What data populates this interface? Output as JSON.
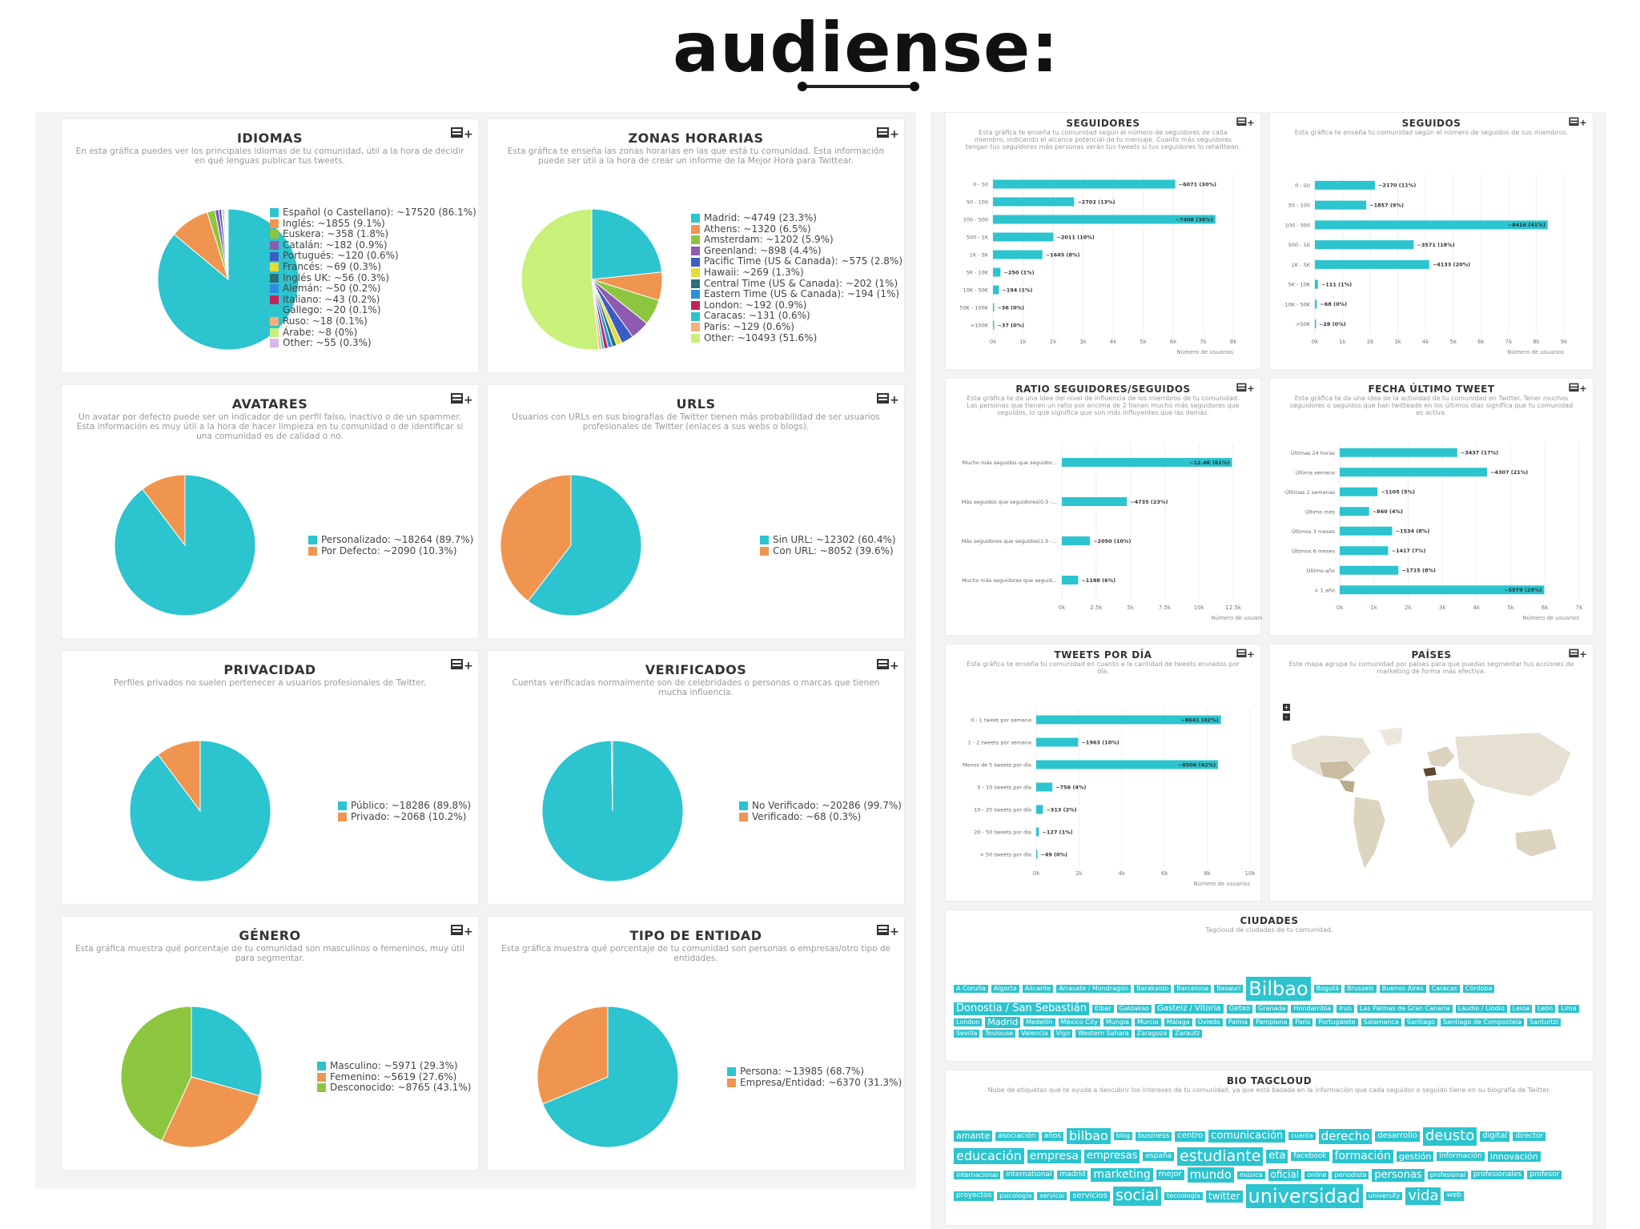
{
  "brand": {
    "logo_text": "audiense:"
  },
  "colors": {
    "teal": "#2bc4cf",
    "orange": "#f0954f",
    "green": "#8cc63f",
    "bg": "#f3f3f3"
  },
  "left_panels": {
    "idiomas": {
      "title": "IDIOMAS",
      "desc": "En esta gráfica puedes ver los principales idiomas de tu comunidad, útil a la hora de decidir en qué lenguas publicar tus tweets.",
      "slices": [
        {
          "label": "Español (o Castellano): ~17520 (86.1%)",
          "value": 86.1,
          "color": "#2bc4cf"
        },
        {
          "label": "Inglés: ~1855 (9.1%)",
          "value": 9.1,
          "color": "#f0954f"
        },
        {
          "label": "Euskera: ~358 (1.8%)",
          "value": 1.8,
          "color": "#8cc63f"
        },
        {
          "label": "Catalán: ~182 (0.9%)",
          "value": 0.9,
          "color": "#8e5bb0"
        },
        {
          "label": "Portugués: ~120 (0.6%)",
          "value": 0.6,
          "color": "#3b5cc4"
        },
        {
          "label": "Francés: ~69 (0.3%)",
          "value": 0.3,
          "color": "#e3dd3a"
        },
        {
          "label": "Inglés UK: ~56 (0.3%)",
          "value": 0.3,
          "color": "#2c6f7a"
        },
        {
          "label": "Alemán: ~50 (0.2%)",
          "value": 0.2,
          "color": "#2b8ee0"
        },
        {
          "label": "Italiano: ~43 (0.2%)",
          "value": 0.2,
          "color": "#c4245a"
        },
        {
          "label": "Gallego: ~20 (0.1%)",
          "value": 0.1,
          "color": "#2bc4cf"
        },
        {
          "label": "Ruso: ~18 (0.1%)",
          "value": 0.1,
          "color": "#f5b07a"
        },
        {
          "label": "Árabe: ~8 (0%)",
          "value": 0.04,
          "color": "#c9f07a"
        },
        {
          "label": "Other: ~55 (0.3%)",
          "value": 0.3,
          "color": "#d7b8ea"
        }
      ]
    },
    "zonas": {
      "title": "ZONAS HORARIAS",
      "desc": "Esta gráfica te enseña las zonas horarias en las que está tu comunidad. Esta información puede ser útil a la hora de crear un informe de la Mejor Hora para Twittear.",
      "slices": [
        {
          "label": "Madrid: ~4749 (23.3%)",
          "value": 23.3,
          "color": "#2bc4cf"
        },
        {
          "label": "Athens: ~1320 (6.5%)",
          "value": 6.5,
          "color": "#f0954f"
        },
        {
          "label": "Amsterdam: ~1202 (5.9%)",
          "value": 5.9,
          "color": "#8cc63f"
        },
        {
          "label": "Greenland: ~898 (4.4%)",
          "value": 4.4,
          "color": "#8e5bb0"
        },
        {
          "label": "Pacific Time (US & Canada): ~575 (2.8%)",
          "value": 2.8,
          "color": "#3b5cc4"
        },
        {
          "label": "Hawaii: ~269 (1.3%)",
          "value": 1.3,
          "color": "#e3dd3a"
        },
        {
          "label": "Central Time (US & Canada): ~202 (1%)",
          "value": 1.0,
          "color": "#2c6f7a"
        },
        {
          "label": "Eastern Time (US & Canada): ~194 (1%)",
          "value": 1.0,
          "color": "#2b8ee0"
        },
        {
          "label": "London: ~192 (0.9%)",
          "value": 0.9,
          "color": "#c4245a"
        },
        {
          "label": "Caracas: ~131 (0.6%)",
          "value": 0.6,
          "color": "#2bc4cf"
        },
        {
          "label": "Paris: ~129 (0.6%)",
          "value": 0.6,
          "color": "#f5b07a"
        },
        {
          "label": "Other: ~10493 (51.6%)",
          "value": 51.6,
          "color": "#c9f07a"
        }
      ]
    },
    "avatares": {
      "title": "AVATARES",
      "desc": "Un avatar por defecto puede ser un indicador de un perfil falso, inactivo o de un spammer. Esta información es muy útil a la hora de hacer limpieza en tu comunidad o de identificar si una comunidad es de calidad o no.",
      "slices": [
        {
          "label": "Personalizado: ~18264 (89.7%)",
          "value": 89.7,
          "color": "#2bc4cf"
        },
        {
          "label": "Por Defecto: ~2090 (10.3%)",
          "value": 10.3,
          "color": "#f0954f"
        }
      ]
    },
    "urls": {
      "title": "URLS",
      "desc": "Usuarios con URLs en sus biografías de Twitter tienen más probabilidad de ser usuarios profesionales de Twitter (enlaces a sus webs o blogs).",
      "slices": [
        {
          "label": "Sin URL: ~12302 (60.4%)",
          "value": 60.4,
          "color": "#2bc4cf"
        },
        {
          "label": "Con URL: ~8052 (39.6%)",
          "value": 39.6,
          "color": "#f0954f"
        }
      ]
    },
    "privacidad": {
      "title": "PRIVACIDAD",
      "desc": "Perfiles privados no suelen pertenecer a usuarios profesionales de Twitter.",
      "slices": [
        {
          "label": "Público: ~18286 (89.8%)",
          "value": 89.8,
          "color": "#2bc4cf"
        },
        {
          "label": "Privado: ~2068 (10.2%)",
          "value": 10.2,
          "color": "#f0954f"
        }
      ]
    },
    "verificados": {
      "title": "VERIFICADOS",
      "desc": "Cuentas verificadas normalmente son de celebridades o personas o marcas que tienen mucha influencia.",
      "slices": [
        {
          "label": "No Verificado: ~20286 (99.7%)",
          "value": 99.7,
          "color": "#2bc4cf"
        },
        {
          "label": "Verificado: ~68 (0.3%)",
          "value": 0.3,
          "color": "#f0954f"
        }
      ]
    },
    "genero": {
      "title": "GÉNERO",
      "desc": "Esta gráfica muestra qué porcentaje de tu comunidad son masculinos o femeninos, muy útil para segmentar.",
      "slices": [
        {
          "label": "Masculino: ~5971 (29.3%)",
          "value": 29.3,
          "color": "#2bc4cf"
        },
        {
          "label": "Femenino: ~5619 (27.6%)",
          "value": 27.6,
          "color": "#f0954f"
        },
        {
          "label": "Desconocido: ~8765 (43.1%)",
          "value": 43.1,
          "color": "#8cc63f"
        }
      ]
    },
    "entidad": {
      "title": "TIPO DE ENTIDAD",
      "desc": "Esta gráfica muestra qué porcentaje de tu comunidad son personas o empresas/otro tipo de entidades.",
      "slices": [
        {
          "label": "Persona: ~13985 (68.7%)",
          "value": 68.7,
          "color": "#2bc4cf"
        },
        {
          "label": "Empresa/Entidad: ~6370 (31.3%)",
          "value": 31.3,
          "color": "#f0954f"
        }
      ]
    }
  },
  "chart_data": [
    {
      "type": "bar",
      "title": "SEGUIDORES",
      "xlabel": "Número de usuarios",
      "desc": "Esta gráfica te enseña tu comunidad según el número de seguidores de cada miembro, indicando el alcance potencial de tu mensaje. Cuanto más seguidores tengan tus seguidores más personas verán tus tweets si tus seguidores lo retwittean.",
      "categories": [
        "0 - 50",
        "50 - 100",
        "100 - 500",
        "500 - 1K",
        "1K - 5K",
        "5K - 10K",
        "10K - 50K",
        "50K - 100K",
        ">100K"
      ],
      "values": [
        6071,
        2702,
        7408,
        2011,
        1645,
        250,
        194,
        36,
        37
      ],
      "labels": [
        "~6071 (30%)",
        "~2702 (13%)",
        "~7408 (36%)",
        "~2011 (10%)",
        "~1645 (8%)",
        "~250 (1%)",
        "~194 (1%)",
        "~36 (0%)",
        "~37 (0%)"
      ],
      "xlim": [
        0,
        8000
      ],
      "ticks": [
        "0k",
        "1k",
        "2k",
        "3k",
        "4k",
        "5k",
        "6k",
        "7k",
        "8k"
      ]
    },
    {
      "type": "bar",
      "title": "SEGUIDOS",
      "xlabel": "Número de usuarios",
      "desc": "Esta gráfica te enseña tu comunidad según el número de seguidos de sus miembros.",
      "categories": [
        "0 - 50",
        "50 - 100",
        "100 - 500",
        "500 - 1K",
        "1K - 5K",
        "5K - 10K",
        "10K - 50K",
        ">50K"
      ],
      "values": [
        2170,
        1857,
        8416,
        3571,
        4133,
        111,
        68,
        28
      ],
      "labels": [
        "~2170 (11%)",
        "~1857 (9%)",
        "~8416 (41%)",
        "~3571 (18%)",
        "~4133 (20%)",
        "~111 (1%)",
        "~68 (0%)",
        "~28 (0%)"
      ],
      "xlim": [
        0,
        9000
      ],
      "ticks": [
        "0k",
        "1k",
        "2k",
        "3k",
        "4k",
        "5k",
        "6k",
        "7k",
        "8k",
        "9k"
      ]
    },
    {
      "type": "bar",
      "title": "RATIO SEGUIDORES/SEGUIDOS",
      "xlabel": "Número de usuarios",
      "desc": "Esta gráfica te da una idea del nivel de influencia de los miembros de tu comunidad. Las personas que tienen un ratio por encima de 2 tienen mucho más seguidores que seguidos, lo que significa que son más influyentes que las demás.",
      "categories": [
        "Mucho más seguidos que seguidor...",
        "Más seguidos que seguidores(0.5 -...",
        "Más seguidores que seguidos(1.0 -...",
        "Mucho más seguidores que seguid..."
      ],
      "values": [
        12400,
        4735,
        2050,
        1188
      ],
      "labels": [
        "~12.4K (61%)",
        "~4735 (23%)",
        "~2050 (10%)",
        "~1188 (6%)"
      ],
      "xlim": [
        0,
        15000
      ],
      "ticks": [
        "0k",
        "2.5k",
        "5k",
        "7.5k",
        "10k",
        "12.5k",
        "15k"
      ]
    },
    {
      "type": "bar",
      "title": "FECHA ÚLTIMO TWEET",
      "xlabel": "Número de usuarios",
      "desc": "Esta gráfica te da una idea de la actividad de tu comunidad en Twitter. Tener muchos seguidores o seguidos que han twitteado en los últimos días significa que tu comunidad es activa.",
      "categories": [
        "Últimas 24 horas",
        "Última semana",
        "Últimas 2 semanas",
        "Último mes",
        "Últimos 3 meses",
        "Últimos 6 meses",
        "Último año",
        "> 1 año"
      ],
      "values": [
        3437,
        4307,
        1105,
        860,
        1534,
        1417,
        1715,
        5979
      ],
      "labels": [
        "~3437 (17%)",
        "~4307 (21%)",
        "~1105 (5%)",
        "~860 (4%)",
        "~1534 (8%)",
        "~1417 (7%)",
        "~1715 (8%)",
        "~5979 (29%)"
      ],
      "xlim": [
        0,
        7000
      ],
      "ticks": [
        "0k",
        "1k",
        "2k",
        "3k",
        "4k",
        "5k",
        "6k",
        "7k"
      ]
    },
    {
      "type": "bar",
      "title": "TWEETS POR DÍA",
      "xlabel": "Número de usuarios",
      "desc": "Esta gráfica te enseña tu comunidad en cuanto a la cantidad de tweets enviados por día.",
      "categories": [
        "0 - 1 tweet por semana",
        "1 - 2 tweets por semana",
        "Menos de 5 tweets por día",
        "5 - 10 tweets por día",
        "10 - 20 tweets por día",
        "20 - 50 tweets por día",
        "> 50 tweets por día"
      ],
      "values": [
        8641,
        1963,
        8506,
        756,
        313,
        127,
        49
      ],
      "labels": [
        "~8641 (42%)",
        "~1963 (10%)",
        "~8506 (42%)",
        "~756 (4%)",
        "~313 (2%)",
        "~127 (1%)",
        "~49 (0%)"
      ],
      "xlim": [
        0,
        10000
      ],
      "ticks": [
        "0k",
        "2k",
        "4k",
        "6k",
        "8k",
        "10k"
      ]
    }
  ],
  "paises": {
    "title": "PAÍSES",
    "desc": "Este mapa agrupa tu comunidad por países para que puedas segmentar tus acciones de marketing de forma más efectiva.",
    "zoom_in": "+",
    "zoom_out": "-"
  },
  "ciudades": {
    "title": "CIUDADES",
    "desc": "Tagcloud de ciudades de tu comunidad.",
    "tags": [
      {
        "t": "A Coruña",
        "s": 8
      },
      {
        "t": "Algorta",
        "s": 8
      },
      {
        "t": "Alicante",
        "s": 8
      },
      {
        "t": "Arrasate / Mondragón",
        "s": 8
      },
      {
        "t": "Barakaldo",
        "s": 8
      },
      {
        "t": "Barcelona",
        "s": 8
      },
      {
        "t": "Basauri",
        "s": 8
      },
      {
        "t": "Bilbao",
        "s": 24
      },
      {
        "t": "Bogotá",
        "s": 8
      },
      {
        "t": "Brussels",
        "s": 8
      },
      {
        "t": "Buenos Aires",
        "s": 8
      },
      {
        "t": "Caracas",
        "s": 8
      },
      {
        "t": "Córdoba",
        "s": 8
      },
      {
        "t": "Donostia / San Sebastián",
        "s": 13
      },
      {
        "t": "Elbar",
        "s": 8
      },
      {
        "t": "Galdakao",
        "s": 8
      },
      {
        "t": "Gasteiz / Vitoria",
        "s": 10
      },
      {
        "t": "Getxo",
        "s": 9
      },
      {
        "t": "Granada",
        "s": 8
      },
      {
        "t": "Hondarribia",
        "s": 8
      },
      {
        "t": "Irun",
        "s": 8
      },
      {
        "t": "Las Palmas de Gran Canaria",
        "s": 8
      },
      {
        "t": "Laudio / Llodio",
        "s": 8
      },
      {
        "t": "Leioa",
        "s": 8
      },
      {
        "t": "León",
        "s": 8
      },
      {
        "t": "Lima",
        "s": 8
      },
      {
        "t": "London",
        "s": 8
      },
      {
        "t": "Madrid",
        "s": 11
      },
      {
        "t": "Medellín",
        "s": 8
      },
      {
        "t": "México City",
        "s": 8
      },
      {
        "t": "Mungia",
        "s": 8
      },
      {
        "t": "Murcia",
        "s": 8
      },
      {
        "t": "Málaga",
        "s": 8
      },
      {
        "t": "Oviedo",
        "s": 8
      },
      {
        "t": "Palma",
        "s": 8
      },
      {
        "t": "Pamplona",
        "s": 8
      },
      {
        "t": "Paris",
        "s": 8
      },
      {
        "t": "Portugalete",
        "s": 8
      },
      {
        "t": "Salamanca",
        "s": 8
      },
      {
        "t": "Santiago",
        "s": 8
      },
      {
        "t": "Santiago de Compostela",
        "s": 8
      },
      {
        "t": "Santurtzi",
        "s": 8
      },
      {
        "t": "Sevilla",
        "s": 8
      },
      {
        "t": "Toulouse",
        "s": 8
      },
      {
        "t": "Valencia",
        "s": 8
      },
      {
        "t": "Vigo",
        "s": 8
      },
      {
        "t": "Western Sahara",
        "s": 8
      },
      {
        "t": "Zaragoza",
        "s": 8
      },
      {
        "t": "Zarautz",
        "s": 8
      }
    ]
  },
  "bio": {
    "title": "BIO TAGCLOUD",
    "desc": "Nube de etiquetas que te ayuda a descubrir los intereses de tu comunidad, ya que está basada en la información que cada seguidor o seguido tiene en su biografía de Twitter.",
    "tags": [
      {
        "t": "amante",
        "s": 11
      },
      {
        "t": "asociación",
        "s": 9
      },
      {
        "t": "años",
        "s": 9
      },
      {
        "t": "bilbao",
        "s": 16
      },
      {
        "t": "blog",
        "s": 8
      },
      {
        "t": "business",
        "s": 9
      },
      {
        "t": "centro",
        "s": 10
      },
      {
        "t": "comunicación",
        "s": 13
      },
      {
        "t": "cuenta",
        "s": 8
      },
      {
        "t": "derecho",
        "s": 15
      },
      {
        "t": "desarrollo",
        "s": 10
      },
      {
        "t": "deusto",
        "s": 18
      },
      {
        "t": "digital",
        "s": 10
      },
      {
        "t": "director",
        "s": 9
      },
      {
        "t": "educación",
        "s": 16
      },
      {
        "t": "empresa",
        "s": 14
      },
      {
        "t": "empresas",
        "s": 13
      },
      {
        "t": "españa",
        "s": 9
      },
      {
        "t": "estudiante",
        "s": 19
      },
      {
        "t": "eta",
        "s": 13
      },
      {
        "t": "facebook",
        "s": 9
      },
      {
        "t": "formación",
        "s": 14
      },
      {
        "t": "gestión",
        "s": 11
      },
      {
        "t": "información",
        "s": 9
      },
      {
        "t": "innovación",
        "s": 11
      },
      {
        "t": "internacional",
        "s": 8
      },
      {
        "t": "international",
        "s": 9
      },
      {
        "t": "madrid",
        "s": 9
      },
      {
        "t": "marketing",
        "s": 14
      },
      {
        "t": "mejor",
        "s": 10
      },
      {
        "t": "mundo",
        "s": 15
      },
      {
        "t": "música",
        "s": 8
      },
      {
        "t": "oficial",
        "s": 12
      },
      {
        "t": "online",
        "s": 8
      },
      {
        "t": "periodista",
        "s": 8
      },
      {
        "t": "personas",
        "s": 13
      },
      {
        "t": "profesional",
        "s": 8
      },
      {
        "t": "profesionales",
        "s": 9
      },
      {
        "t": "profesor",
        "s": 9
      },
      {
        "t": "proyectos",
        "s": 9
      },
      {
        "t": "psicología",
        "s": 8
      },
      {
        "t": "servicio",
        "s": 8
      },
      {
        "t": "servicios",
        "s": 10
      },
      {
        "t": "social",
        "s": 19
      },
      {
        "t": "tecnología",
        "s": 8
      },
      {
        "t": "twitter",
        "s": 12
      },
      {
        "t": "universidad",
        "s": 24
      },
      {
        "t": "university",
        "s": 8
      },
      {
        "t": "vida",
        "s": 18
      },
      {
        "t": "web",
        "s": 9
      }
    ]
  }
}
